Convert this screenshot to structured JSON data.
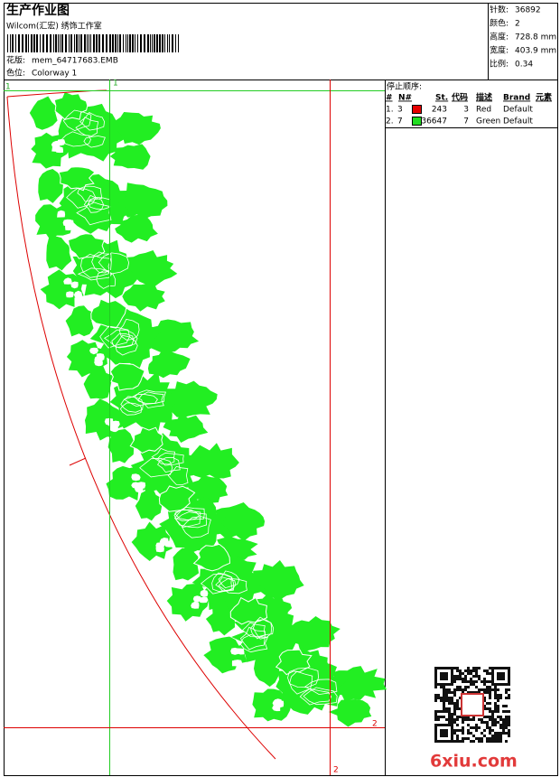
{
  "header": {
    "title": "生产作业图",
    "studio": "Wilcom(汇宏) 绣饰工作室",
    "design_label": "花版:",
    "design": "mem_64717683.EMB",
    "colorway_label": "色位:",
    "colorway": "Colorway 1"
  },
  "stats": [
    {
      "label": "针数:",
      "value": "36892"
    },
    {
      "label": "颜色:",
      "value": "2"
    },
    {
      "label": "高度:",
      "value": "728.8 mm"
    },
    {
      "label": "宽度:",
      "value": "403.9 mm"
    },
    {
      "label": "比例:",
      "value": "0.34"
    }
  ],
  "stop_sequence": {
    "title": "停止顺序:",
    "columns": [
      "#",
      "N#",
      "St.",
      "代码",
      "描述",
      "Brand",
      "元素"
    ],
    "rows": [
      {
        "index": "1.",
        "needle": "3",
        "color": "#e60000",
        "stitches": "243",
        "code": "3",
        "description": "Red",
        "brand": "Default"
      },
      {
        "index": "2.",
        "needle": "7",
        "color": "#22dd22",
        "stitches": "36647",
        "code": "7",
        "description": "Green",
        "brand": "Default"
      }
    ]
  },
  "guides": {
    "green_x_label": "1",
    "green_y_label": "1",
    "red_x_label": "2",
    "red_y_label": "2"
  },
  "watermark": "6xiu.com"
}
